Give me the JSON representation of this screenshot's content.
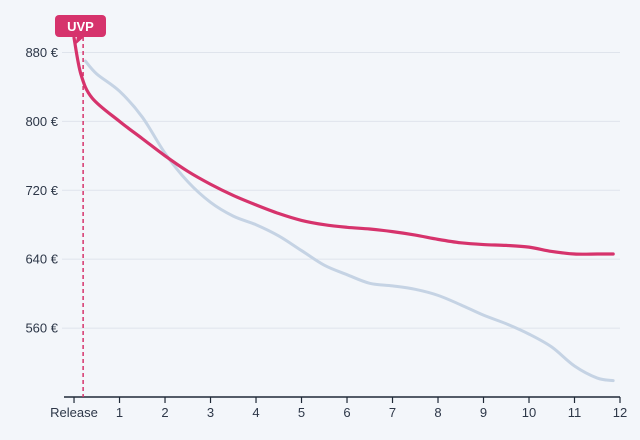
{
  "chart_data": {
    "type": "line",
    "title": "",
    "xlabel": "",
    "ylabel": "",
    "x_ticks": [
      {
        "x": 0,
        "label": "Release"
      },
      {
        "x": 1,
        "label": "1"
      },
      {
        "x": 2,
        "label": "2"
      },
      {
        "x": 3,
        "label": "3"
      },
      {
        "x": 4,
        "label": "4"
      },
      {
        "x": 5,
        "label": "5"
      },
      {
        "x": 6,
        "label": "6"
      },
      {
        "x": 7,
        "label": "7"
      },
      {
        "x": 8,
        "label": "8"
      },
      {
        "x": 9,
        "label": "9"
      },
      {
        "x": 10,
        "label": "10"
      },
      {
        "x": 11,
        "label": "11"
      },
      {
        "x": 12,
        "label": "12"
      }
    ],
    "y_ticks": [
      {
        "y": 560,
        "label": "560 €"
      },
      {
        "y": 640,
        "label": "640 €"
      },
      {
        "y": 720,
        "label": "720 €"
      },
      {
        "y": 800,
        "label": "800 €"
      },
      {
        "y": 880,
        "label": "880 €"
      }
    ],
    "xlim": [
      -0.55,
      12
    ],
    "ylim": [
      480,
      920
    ],
    "grid": true,
    "marker": {
      "x": 0.2,
      "label": "UVP",
      "color": "#d6336c"
    },
    "series": [
      {
        "color": "#c5d3e4",
        "values": [
          [
            0.25,
            870
          ],
          [
            0.5,
            855
          ],
          [
            1.0,
            835
          ],
          [
            1.5,
            805
          ],
          [
            2.0,
            763
          ],
          [
            2.5,
            730
          ],
          [
            3.0,
            706
          ],
          [
            3.5,
            690
          ],
          [
            4.0,
            680
          ],
          [
            4.5,
            667
          ],
          [
            5.0,
            650
          ],
          [
            5.5,
            633
          ],
          [
            6.0,
            622
          ],
          [
            6.5,
            612
          ],
          [
            7.0,
            609
          ],
          [
            7.5,
            605
          ],
          [
            8.0,
            598
          ],
          [
            8.5,
            587
          ],
          [
            9.0,
            575
          ],
          [
            9.5,
            565
          ],
          [
            10.0,
            553
          ],
          [
            10.5,
            538
          ],
          [
            11.0,
            516
          ],
          [
            11.5,
            502
          ],
          [
            11.85,
            499
          ]
        ]
      },
      {
        "color": "#d6336c",
        "values": [
          [
            0.0,
            897
          ],
          [
            0.15,
            855
          ],
          [
            0.4,
            827
          ],
          [
            1.0,
            800
          ],
          [
            1.5,
            780
          ],
          [
            2.0,
            760
          ],
          [
            2.5,
            742
          ],
          [
            3.0,
            727
          ],
          [
            3.5,
            714
          ],
          [
            4.0,
            703
          ],
          [
            4.5,
            693
          ],
          [
            5.0,
            685
          ],
          [
            5.5,
            680
          ],
          [
            6.0,
            677
          ],
          [
            6.5,
            675
          ],
          [
            7.0,
            672
          ],
          [
            7.5,
            668
          ],
          [
            8.0,
            663
          ],
          [
            8.5,
            659
          ],
          [
            9.0,
            657
          ],
          [
            9.5,
            656
          ],
          [
            10.0,
            654
          ],
          [
            10.5,
            649
          ],
          [
            11.0,
            646
          ],
          [
            11.5,
            646
          ],
          [
            11.85,
            646
          ]
        ]
      }
    ]
  }
}
